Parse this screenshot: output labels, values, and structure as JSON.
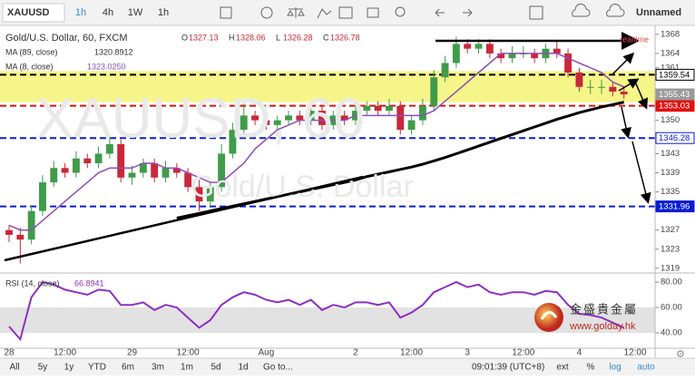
{
  "toolbar": {
    "symbol": "XAUUSD",
    "intervals": [
      "1h",
      "4h",
      "1W",
      "1h"
    ],
    "layout": "Unnamed"
  },
  "legend": {
    "title": "Gold/U.S. Dollar, 60, FXCM",
    "ohlc": [
      [
        "O",
        "1327.13"
      ],
      [
        "H",
        "1328.06"
      ],
      [
        "L",
        "1326.28"
      ],
      [
        "C",
        "1326.78"
      ]
    ],
    "ma89": [
      "MA (89, close)",
      "1320.8912"
    ],
    "ma8": [
      "MA (8, close)",
      "1323.0250"
    ],
    "rsi": [
      "RSI (14, close)",
      "66.8941"
    ]
  },
  "watermark": {
    "symbol": "XAUUSD, 60",
    "name": "Gold/U.S. Dollar"
  },
  "realtime": "realtime",
  "logo": {
    "name": "金盛貴金屬",
    "url": "www.golday.hk"
  },
  "bottom_bar": {
    "ranges": [
      "All",
      "5y",
      "1y",
      "YTD",
      "6m",
      "3m",
      "1m",
      "5d",
      "1d"
    ],
    "goto": "Go to...",
    "clock": "09:01:39 (UTC+8)",
    "options": [
      "ext",
      "%",
      "log",
      "auto"
    ]
  },
  "chart_data": {
    "type": "candlestick",
    "categories": [
      "28",
      null,
      null,
      null,
      null,
      "12:00",
      null,
      null,
      null,
      null,
      null,
      "29",
      null,
      null,
      null,
      null,
      "12:00",
      null,
      null,
      null,
      null,
      null,
      null,
      "Aug",
      null,
      null,
      null,
      null,
      null,
      null,
      null,
      "2",
      null,
      null,
      null,
      null,
      "12:00",
      null,
      null,
      null,
      null,
      "3",
      null,
      null,
      null,
      null,
      "12:00",
      null,
      null,
      null,
      null,
      "4",
      null,
      null,
      null,
      null,
      "12:00"
    ],
    "up_color": "#3f9c4a",
    "down_color": "#c8283a",
    "open": [
      1327,
      1326,
      1325,
      1331,
      1337,
      1340,
      1339,
      1342,
      1341,
      1343,
      1345,
      1338,
      1339,
      1341,
      1338,
      1340,
      1339,
      1336,
      1333,
      1336,
      1343,
      1348,
      1351,
      1350,
      1349,
      1350,
      1351,
      1350,
      1352,
      1349,
      1351,
      1350,
      1352,
      1353,
      1352,
      1353,
      1348,
      1350,
      1353,
      1359,
      1362,
      1366,
      1365,
      1366,
      1364,
      1363,
      1364,
      1364,
      1363,
      1365,
      1364,
      1360,
      1357,
      1357,
      1357,
      1356,
      null
    ],
    "high": [
      1328,
      1327.5,
      1332,
      1338.5,
      1341.5,
      1341,
      1343.5,
      1343,
      1344.5,
      1347,
      1346,
      1340.5,
      1342,
      1342,
      1341.5,
      1341,
      1340,
      1337.5,
      1337,
      1345,
      1349.5,
      1353.5,
      1352,
      1351.5,
      1351,
      1352,
      1352,
      1353,
      1353,
      1352,
      1352,
      1353.5,
      1354,
      1354,
      1354.5,
      1354,
      1351,
      1354.5,
      1360.5,
      1363.5,
      1367.5,
      1367,
      1367,
      1367,
      1365,
      1365.5,
      1365.5,
      1365,
      1366,
      1366.5,
      1365,
      1361,
      1358.5,
      1358.5,
      1358,
      1357,
      null
    ],
    "low": [
      1324.5,
      1320,
      1324,
      1330,
      1336,
      1338,
      1338,
      1340,
      1340,
      1342,
      1337,
      1336.5,
      1338,
      1337,
      1337,
      1338,
      1335,
      1331,
      1332,
      1335,
      1342,
      1347,
      1349,
      1348,
      1348,
      1349,
      1349,
      1349,
      1348,
      1348,
      1349,
      1349,
      1351,
      1351,
      1351,
      1347,
      1347,
      1349,
      1352,
      1358,
      1361,
      1364,
      1364,
      1363,
      1362,
      1362,
      1363,
      1362,
      1362,
      1363,
      1359,
      1356,
      1355.5,
      1355.5,
      1355,
      1354.5,
      null
    ],
    "close": [
      1326,
      1325,
      1331,
      1337,
      1340,
      1339,
      1342,
      1341,
      1343,
      1345,
      1338,
      1339,
      1341,
      1338,
      1340,
      1339,
      1336,
      1333,
      1336,
      1343,
      1348,
      1351,
      1350,
      1349,
      1350,
      1351,
      1350,
      1352,
      1349,
      1351,
      1350,
      1352,
      1353,
      1352,
      1353,
      1348,
      1350,
      1353,
      1359,
      1362,
      1366,
      1365,
      1366,
      1364,
      1363,
      1364,
      1364,
      1363,
      1365,
      1364,
      1360,
      1357,
      1357,
      1357,
      1356,
      1355.43,
      null
    ],
    "lines": [
      {
        "name": "MA (8, close)",
        "color": "#8e4fb5",
        "width": 1.5,
        "values": [
          1328,
          1327,
          1327,
          1329,
          1331,
          1333,
          1335,
          1337,
          1339,
          1340,
          1340,
          1340,
          1341,
          1341,
          1340,
          1340,
          1339,
          1338,
          1337,
          1337,
          1339,
          1341,
          1344,
          1346,
          1348,
          1349,
          1350,
          1350,
          1350,
          1350,
          1350,
          1351,
          1351,
          1351,
          1351,
          1351,
          1351,
          1351,
          1352,
          1354,
          1356,
          1358,
          1360,
          1362,
          1364,
          1364,
          1364,
          1364,
          1364,
          1364,
          1363,
          1362,
          1361,
          1360,
          1358,
          1357,
          null
        ]
      },
      {
        "name": "MA (89, close)",
        "color": "#000000",
        "width": 3,
        "values": [
          null,
          null,
          null,
          null,
          null,
          null,
          null,
          null,
          null,
          null,
          null,
          null,
          null,
          null,
          null,
          1329.5,
          1330,
          1330.5,
          1331,
          1331.5,
          1332,
          1332.5,
          1333,
          1333.5,
          1334,
          1334.5,
          1335,
          1335.5,
          1336,
          1336.5,
          1337,
          1337.5,
          1338.2,
          1338.7,
          1339.2,
          1339.7,
          1340.2,
          1340.8,
          1341.5,
          1342.2,
          1343,
          1343.8,
          1344.6,
          1345.4,
          1346.2,
          1347,
          1347.8,
          1348.6,
          1349.4,
          1350.2,
          1350.9,
          1351.6,
          1352.2,
          1352.8,
          1353.3,
          1353.8,
          null
        ]
      }
    ],
    "ylim": [
      1318.2,
      1369.5
    ],
    "yticks": [
      1368,
      1364,
      1361,
      1350,
      1343,
      1339,
      1335,
      1327,
      1323,
      1319
    ],
    "band": {
      "from": 1360.3,
      "to": 1353.8,
      "color": "#f5f58a"
    },
    "levels": [
      {
        "value": 1359.54,
        "color": "#000000",
        "filled": false
      },
      {
        "value": 1353.03,
        "color": "#e01010",
        "filled": true
      },
      {
        "value": 1346.28,
        "color": "#0a1ed0",
        "filled": false
      },
      {
        "value": 1331.96,
        "color": "#0a1ed0",
        "filled": true
      }
    ],
    "last_price": {
      "value": 1355.43,
      "color": "#9a9a9a"
    },
    "rsi": {
      "color": "#8e2fc2",
      "values": [
        45,
        35,
        68,
        80,
        78,
        74,
        72,
        70,
        74,
        73,
        62,
        62,
        64,
        58,
        62,
        60,
        52,
        44,
        50,
        62,
        68,
        72,
        70,
        66,
        64,
        66,
        62,
        66,
        58,
        62,
        60,
        64,
        64,
        62,
        64,
        52,
        56,
        62,
        72,
        76,
        80,
        76,
        78,
        72,
        70,
        72,
        72,
        70,
        73,
        72,
        62,
        55,
        54,
        52,
        48,
        44,
        null
      ],
      "ylim": [
        28.6,
        86.4
      ],
      "yticks": [
        {
          "value": 80,
          "label": "80.00"
        },
        {
          "value": 60,
          "label": "60.00"
        },
        {
          "value": 40,
          "label": "40.00"
        }
      ],
      "band": [
        60,
        40
      ]
    }
  }
}
